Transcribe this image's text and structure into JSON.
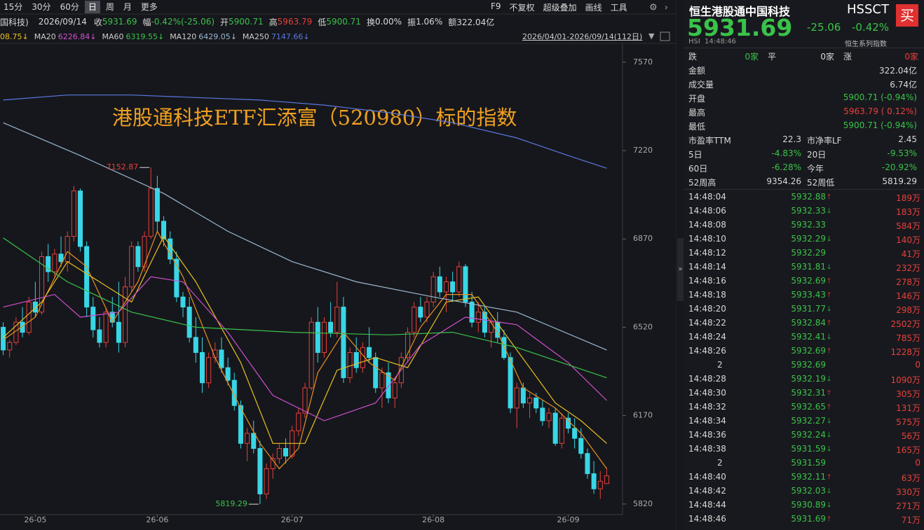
{
  "toolbar": {
    "periods": [
      "15分",
      "30分",
      "60分",
      "日",
      "周",
      "月",
      "更多"
    ],
    "tools": [
      "F9",
      "不复权",
      "超级叠加",
      "画线",
      "工具"
    ]
  },
  "info_bar": {
    "name": "国科技)",
    "date": "2026/09/14",
    "fields": [
      {
        "label": "收",
        "value": "5931.69",
        "color": "#3ac34a"
      },
      {
        "label": "幅",
        "value": "-0.42%(-25.06)",
        "color": "#3ac34a"
      },
      {
        "label": "开",
        "value": "5900.71",
        "color": "#3ac34a"
      },
      {
        "label": "高",
        "value": "5963.79",
        "color": "#e8403a"
      },
      {
        "label": "低",
        "value": "5900.71",
        "color": "#3ac34a"
      },
      {
        "label": "换",
        "value": "0.00%",
        "color": "#d8d8d8"
      },
      {
        "label": "振",
        "value": "1.06%",
        "color": "#d8d8d8"
      },
      {
        "label": "额",
        "value": "322.04亿",
        "color": "#d8d8d8"
      }
    ]
  },
  "chart_data": {
    "type": "candlestick",
    "title": "港股通科技ETF汇添富（520980）标的指数",
    "title_color": "#f0a020",
    "legend": [
      {
        "value": "08.75↓",
        "color": "#e8c020"
      },
      {
        "name": "MA20",
        "value": "6226.84↓",
        "color": "#d050d0"
      },
      {
        "name": "MA60",
        "value": "6319.55↓",
        "color": "#3ac34a"
      },
      {
        "name": "MA120",
        "value": "6429.05↓",
        "color": "#9ab8d0"
      },
      {
        "name": "MA250",
        "value": "7147.66↓",
        "color": "#5a78e0"
      }
    ],
    "range_label": "2026/04/01-2026/09/14(112日)",
    "up_color": "#e8403a",
    "down_color": "#38d6e6",
    "categories": [
      null,
      null,
      null,
      null,
      null,
      "26-05",
      null,
      null,
      null,
      null,
      null,
      null,
      null,
      null,
      null,
      null,
      null,
      null,
      null,
      null,
      null,
      null,
      null,
      null,
      "26-06",
      null,
      null,
      null,
      null,
      null,
      null,
      null,
      null,
      null,
      null,
      null,
      null,
      null,
      null,
      null,
      null,
      null,
      null,
      null,
      null,
      "26-07",
      null,
      null,
      null,
      null,
      null,
      null,
      null,
      null,
      null,
      null,
      null,
      null,
      null,
      null,
      null,
      null,
      null,
      null,
      null,
      null,
      null,
      "26-08",
      null,
      null,
      null,
      null,
      null,
      null,
      null,
      null,
      null,
      null,
      null,
      null,
      null,
      null,
      null,
      null,
      null,
      null,
      null,
      null,
      "26-09",
      null,
      null,
      null,
      null,
      null,
      null
    ],
    "candles": [
      [
        6520,
        6540,
        6410,
        6430
      ],
      [
        6430,
        6470,
        6400,
        6460
      ],
      [
        6460,
        6560,
        6450,
        6540
      ],
      [
        6540,
        6600,
        6480,
        6500
      ],
      [
        6500,
        6640,
        6490,
        6620
      ],
      [
        6620,
        6700,
        6560,
        6580
      ],
      [
        6580,
        6820,
        6570,
        6800
      ],
      [
        6800,
        6850,
        6700,
        6740
      ],
      [
        6740,
        6830,
        6720,
        6810
      ],
      [
        6810,
        6880,
        6760,
        6780
      ],
      [
        6780,
        6900,
        6740,
        6880
      ],
      [
        6880,
        7080,
        6860,
        7060
      ],
      [
        7060,
        7070,
        6820,
        6840
      ],
      [
        6840,
        6860,
        6560,
        6600
      ],
      [
        6600,
        6640,
        6480,
        6510
      ],
      [
        6510,
        6560,
        6440,
        6460
      ],
      [
        6460,
        6600,
        6440,
        6580
      ],
      [
        6580,
        6640,
        6520,
        6540
      ],
      [
        6540,
        6700,
        6420,
        6460
      ],
      [
        6460,
        6720,
        6440,
        6680
      ],
      [
        6680,
        6860,
        6660,
        6840
      ],
      [
        6840,
        6860,
        6740,
        6760
      ],
      [
        6760,
        6900,
        6740,
        6880
      ],
      [
        6880,
        7152.87,
        6870,
        7070
      ],
      [
        7070,
        7120,
        6900,
        6940
      ],
      [
        6940,
        6960,
        6840,
        6870
      ],
      [
        6870,
        6900,
        6770,
        6790
      ],
      [
        6790,
        6820,
        6620,
        6640
      ],
      [
        6640,
        6660,
        6560,
        6600
      ],
      [
        6600,
        6640,
        6460,
        6480
      ],
      [
        6480,
        6560,
        6380,
        6420
      ],
      [
        6420,
        6480,
        6260,
        6300
      ],
      [
        6300,
        6420,
        6280,
        6400
      ],
      [
        6400,
        6460,
        6380,
        6430
      ],
      [
        6430,
        6480,
        6340,
        6360
      ],
      [
        6360,
        6400,
        6290,
        6310
      ],
      [
        6310,
        6340,
        6190,
        6210
      ],
      [
        6210,
        6230,
        6040,
        6060
      ],
      [
        6060,
        6120,
        5990,
        6100
      ],
      [
        6100,
        6150,
        6020,
        6040
      ],
      [
        6040,
        6070,
        5819.29,
        5860
      ],
      [
        5860,
        5980,
        5840,
        5960
      ],
      [
        5960,
        6020,
        5920,
        6000
      ],
      [
        6000,
        6060,
        5980,
        6040
      ],
      [
        6040,
        6080,
        5980,
        6010
      ],
      [
        6010,
        6130,
        6000,
        6110
      ],
      [
        6110,
        6200,
        6090,
        6180
      ],
      [
        6180,
        6300,
        6160,
        6280
      ],
      [
        6280,
        6560,
        6270,
        6540
      ],
      [
        6540,
        6600,
        6380,
        6420
      ],
      [
        6420,
        6560,
        6400,
        6540
      ],
      [
        6540,
        6620,
        6480,
        6500
      ],
      [
        6500,
        6700,
        6480,
        6600
      ],
      [
        6600,
        6640,
        6300,
        6320
      ],
      [
        6320,
        6440,
        6300,
        6420
      ],
      [
        6420,
        6480,
        6340,
        6360
      ],
      [
        6360,
        6460,
        6340,
        6440
      ],
      [
        6440,
        6520,
        6380,
        6400
      ],
      [
        6400,
        6420,
        6260,
        6280
      ],
      [
        6280,
        6360,
        6200,
        6340
      ],
      [
        6340,
        6380,
        6220,
        6240
      ],
      [
        6240,
        6320,
        6200,
        6300
      ],
      [
        6300,
        6420,
        6280,
        6400
      ],
      [
        6400,
        6520,
        6380,
        6500
      ],
      [
        6500,
        6620,
        6480,
        6600
      ],
      [
        6600,
        6640,
        6540,
        6560
      ],
      [
        6560,
        6640,
        6540,
        6620
      ],
      [
        6620,
        6740,
        6600,
        6720
      ],
      [
        6720,
        6760,
        6640,
        6660
      ],
      [
        6660,
        6720,
        6580,
        6700
      ],
      [
        6700,
        6740,
        6620,
        6660
      ],
      [
        6660,
        6780,
        6640,
        6760
      ],
      [
        6760,
        6770,
        6600,
        6620
      ],
      [
        6620,
        6660,
        6520,
        6540
      ],
      [
        6540,
        6620,
        6500,
        6580
      ],
      [
        6580,
        6600,
        6480,
        6500
      ],
      [
        6500,
        6560,
        6440,
        6540
      ],
      [
        6540,
        6580,
        6460,
        6480
      ],
      [
        6480,
        6510,
        6390,
        6400
      ],
      [
        6400,
        6420,
        6180,
        6200
      ],
      [
        6200,
        6300,
        6120,
        6280
      ],
      [
        6280,
        6300,
        6200,
        6220
      ],
      [
        6220,
        6260,
        6160,
        6240
      ],
      [
        6240,
        6260,
        6180,
        6200
      ],
      [
        6200,
        6230,
        6130,
        6150
      ],
      [
        6150,
        6200,
        6120,
        6180
      ],
      [
        6180,
        6200,
        6050,
        6060
      ],
      [
        6060,
        6180,
        6040,
        6160
      ],
      [
        6160,
        6180,
        6100,
        6120
      ],
      [
        6120,
        6160,
        6040,
        6080
      ],
      [
        6080,
        6120,
        6000,
        6020
      ],
      [
        6020,
        6040,
        5920,
        5940
      ],
      [
        5940,
        5990,
        5860,
        5880
      ],
      [
        5880,
        5950,
        5840,
        5910
      ],
      [
        5900.71,
        5963.79,
        5900.71,
        5931.69
      ]
    ],
    "series": [
      {
        "color": "#e89020",
        "x": [
          0,
          5,
          10,
          13,
          17,
          21,
          24,
          28,
          33,
          37,
          40,
          43,
          46,
          49,
          53,
          57,
          61,
          65,
          69,
          73,
          77,
          81,
          86,
          90,
          94
        ],
        "values": [
          6470,
          6560,
          6820,
          6760,
          6540,
          6700,
          6900,
          6720,
          6400,
          6200,
          6060,
          5960,
          6040,
          6340,
          6500,
          6380,
          6310,
          6520,
          6650,
          6650,
          6500,
          6280,
          6200,
          6100,
          5960
        ]
      },
      {
        "color": "#e8c020",
        "x": [
          0,
          6,
          10,
          15,
          20,
          25,
          30,
          37,
          42,
          47,
          52,
          58,
          63,
          69,
          74,
          80,
          86,
          90,
          94
        ],
        "values": [
          6480,
          6620,
          6780,
          6700,
          6620,
          6880,
          6700,
          6380,
          6060,
          6060,
          6350,
          6400,
          6360,
          6620,
          6640,
          6430,
          6220,
          6150,
          6060
        ]
      },
      {
        "color": "#d050d0",
        "x": [
          0,
          8,
          12,
          18,
          23,
          28,
          35,
          42,
          50,
          58,
          65,
          72,
          80,
          88,
          94
        ],
        "values": [
          6600,
          6650,
          6560,
          6580,
          6720,
          6700,
          6500,
          6250,
          6150,
          6220,
          6450,
          6560,
          6530,
          6380,
          6230
        ]
      },
      {
        "color": "#3ac34a",
        "x": [
          0,
          10,
          20,
          30,
          45,
          60,
          70,
          80,
          94
        ],
        "values": [
          6874,
          6700,
          6580,
          6520,
          6500,
          6490,
          6500,
          6440,
          6320
        ]
      },
      {
        "color": "#9ab8d0",
        "x": [
          0,
          12,
          25,
          35,
          45,
          55,
          67,
          80,
          94
        ],
        "values": [
          7330,
          7200,
          7050,
          6900,
          6780,
          6700,
          6640,
          6580,
          6430
        ]
      },
      {
        "color": "#5a78e0",
        "x": [
          0,
          10,
          20,
          30,
          40,
          50,
          60,
          70,
          80,
          88,
          94
        ],
        "values": [
          7420,
          7440,
          7440,
          7430,
          7420,
          7400,
          7370,
          7330,
          7270,
          7200,
          7150
        ]
      }
    ],
    "annotations": [
      {
        "x": 23,
        "y": 7152.87,
        "color": "#e8403a"
      },
      {
        "x": 40,
        "y": 5819.29,
        "color": "#3ac34a"
      }
    ],
    "ylim": [
      5778,
      7636
    ],
    "yticks": [
      7570,
      7220,
      6870,
      6520,
      6170,
      5820
    ]
  },
  "quote_panel": {
    "name": "恒生港股通中国科技",
    "code": "HSSCT",
    "buy": "买",
    "price": "5931.69",
    "change": "-25.06",
    "change_pct": "-0.42%",
    "exchange": "HSI",
    "time": "14:48:46",
    "index_series": "恒生系列指数",
    "breadth": [
      {
        "label": "跌",
        "count": "0家",
        "color": "#3ac34a"
      },
      {
        "label": "平",
        "count": "0家",
        "color": "#d8d8d8"
      },
      {
        "label": "涨",
        "count": "0家",
        "color": "#e8403a"
      }
    ],
    "stats": [
      {
        "label": "金额",
        "value": "322.04亿",
        "color": "#d8d8d8"
      },
      {
        "label": "成交量",
        "value": "6.74亿",
        "color": "#d8d8d8"
      },
      {
        "label": "开盘",
        "value": "5900.71 (-0.94%)",
        "color": "#3ac34a"
      },
      {
        "label": "最高",
        "value": "5963.79 ( 0.12%)",
        "color": "#e8403a"
      },
      {
        "label": "最低",
        "value": "5900.71 (-0.94%)",
        "color": "#3ac34a"
      }
    ],
    "stats_pairs": [
      [
        {
          "label": "市盈率TTM",
          "value": "22.3",
          "color": "#d8d8d8"
        },
        {
          "label": "市净率LF",
          "value": "2.45",
          "color": "#d8d8d8"
        }
      ],
      [
        {
          "label": "5日",
          "value": "-4.83%",
          "color": "#3ac34a"
        },
        {
          "label": "20日",
          "value": "-9.53%",
          "color": "#3ac34a"
        }
      ],
      [
        {
          "label": "60日",
          "value": "-6.28%",
          "color": "#3ac34a"
        },
        {
          "label": "今年",
          "value": "-20.92%",
          "color": "#3ac34a"
        }
      ],
      [
        {
          "label": "52周高",
          "value": "9354.26",
          "color": "#d8d8d8"
        },
        {
          "label": "52周低",
          "value": "5819.29",
          "color": "#d8d8d8"
        }
      ]
    ],
    "ticks": [
      {
        "time": "14:48:04",
        "price": "5932.88",
        "volume": "189万",
        "arrow": "up"
      },
      {
        "time": "14:48:06",
        "price": "5932.33",
        "volume": "183万",
        "arrow": "down"
      },
      {
        "time": "14:48:08",
        "price": "5932.33",
        "volume": "584万",
        "arrow": null
      },
      {
        "time": "14:48:10",
        "price": "5932.29",
        "volume": "140万",
        "arrow": "down"
      },
      {
        "time": "14:48:12",
        "price": "5932.29",
        "volume": "41万",
        "arrow": null
      },
      {
        "time": "14:48:14",
        "price": "5931.81",
        "volume": "232万",
        "arrow": "down"
      },
      {
        "time": "14:48:16",
        "price": "5932.69",
        "volume": "278万",
        "arrow": "up"
      },
      {
        "time": "14:48:18",
        "price": "5933.43",
        "volume": "146万",
        "arrow": "up"
      },
      {
        "time": "14:48:20",
        "price": "5931.77",
        "volume": "298万",
        "arrow": "down"
      },
      {
        "time": "14:48:22",
        "price": "5932.84",
        "volume": "2502万",
        "arrow": "up"
      },
      {
        "time": "14:48:24",
        "price": "5932.41",
        "volume": "785万",
        "arrow": "down"
      },
      {
        "time": "14:48:26",
        "price": "5932.69",
        "volume": "1228万",
        "arrow": "up"
      },
      {
        "time": "2",
        "price": "5932.69",
        "volume": "0",
        "arrow": null
      },
      {
        "time": "14:48:28",
        "price": "5932.19",
        "volume": "1090万",
        "arrow": "down"
      },
      {
        "time": "14:48:30",
        "price": "5932.31",
        "volume": "305万",
        "arrow": "up"
      },
      {
        "time": "14:48:32",
        "price": "5932.65",
        "volume": "131万",
        "arrow": "up"
      },
      {
        "time": "14:48:34",
        "price": "5932.27",
        "volume": "575万",
        "arrow": "down"
      },
      {
        "time": "14:48:36",
        "price": "5932.24",
        "volume": "56万",
        "arrow": "down"
      },
      {
        "time": "14:48:38",
        "price": "5931.59",
        "volume": "165万",
        "arrow": "down"
      },
      {
        "time": "2",
        "price": "5931.59",
        "volume": "0",
        "arrow": null
      },
      {
        "time": "14:48:40",
        "price": "5932.11",
        "volume": "63万",
        "arrow": "up"
      },
      {
        "time": "14:48:42",
        "price": "5932.03",
        "volume": "330万",
        "arrow": "down"
      },
      {
        "time": "14:48:44",
        "price": "5930.89",
        "volume": "271万",
        "arrow": "down"
      },
      {
        "time": "14:48:46",
        "price": "5931.69",
        "volume": "71万",
        "arrow": "up"
      }
    ]
  }
}
